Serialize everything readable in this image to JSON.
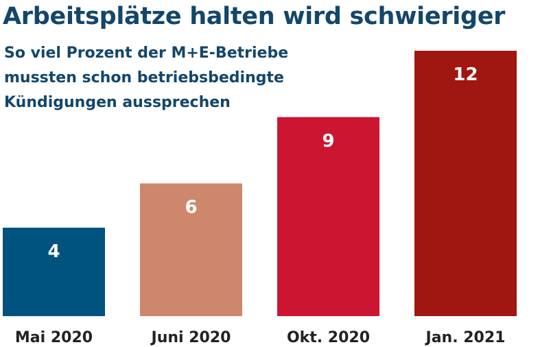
{
  "chart_data": {
    "type": "bar",
    "title": "Arbeitsplätze halten wird schwieriger",
    "subtitle_lines": [
      "So viel Prozent der M+E-Betriebe",
      "mussten schon betriebsbedingte",
      "Kündigungen aussprechen"
    ],
    "categories": [
      "Mai 2020",
      "Juni 2020",
      "Okt. 2020",
      "Jan. 2021"
    ],
    "values": [
      4,
      6,
      9,
      12
    ],
    "colors": [
      "#00527f",
      "#cd876d",
      "#cc1531",
      "#a01611"
    ],
    "ylim": [
      0,
      12
    ],
    "grid": false,
    "legend": "none"
  }
}
